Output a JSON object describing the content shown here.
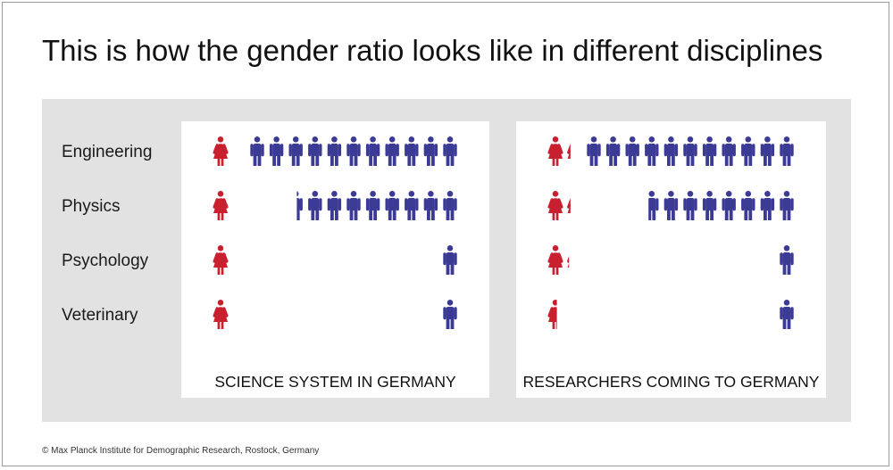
{
  "title": "This is how the gender ratio looks like in different disciplines",
  "copyright": "© Max Planck Institute for Demographic Research, Rostock, Germany",
  "colors": {
    "female": "#c8202f",
    "male": "#3b3b95",
    "panel_bg": "#e2e2e2"
  },
  "chart_data": {
    "type": "pictogram",
    "icon_unit": "person",
    "categories": [
      "Engineering",
      "Physics",
      "Psychology",
      "Veterinary"
    ],
    "panels": [
      {
        "label": "SCIENCE SYSTEM IN GERMANY",
        "series": [
          {
            "gender": "female",
            "values": [
              1,
              1,
              1,
              1
            ]
          },
          {
            "gender": "male",
            "values": [
              11,
              8.3,
              1,
              1
            ]
          }
        ]
      },
      {
        "label": "RESEARCHERS COMING TO GERMANY",
        "series": [
          {
            "gender": "female",
            "values": [
              1.2,
              1.2,
              1.1,
              0.6
            ]
          },
          {
            "gender": "male",
            "values": [
              11,
              7.6,
              1,
              1
            ]
          }
        ]
      }
    ]
  }
}
